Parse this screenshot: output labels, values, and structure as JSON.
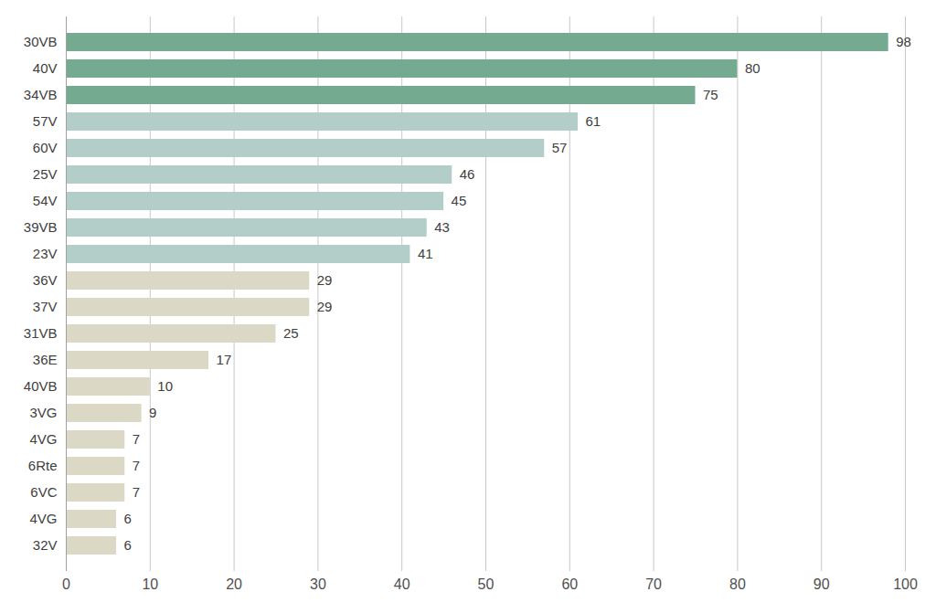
{
  "chart_data": {
    "type": "bar",
    "orientation": "horizontal",
    "categories": [
      "30VB",
      "40V",
      "34VB",
      "57V",
      "60V",
      "25V",
      "54V",
      "39VB",
      "23V",
      "36V",
      "37V",
      "31VB",
      "36E",
      "40VB",
      "3VG",
      "4VG",
      "6Rte",
      "6VC",
      "4VG",
      "32V"
    ],
    "values": [
      98,
      80,
      75,
      61,
      57,
      46,
      45,
      43,
      41,
      29,
      29,
      25,
      17,
      10,
      9,
      7,
      7,
      7,
      6,
      6
    ],
    "colors": [
      "#74aa90",
      "#74aa90",
      "#74aa90",
      "#b3cdc9",
      "#b3cdc9",
      "#b3cdc9",
      "#b3cdc9",
      "#b3cdc9",
      "#b3cdc9",
      "#dbd8c5",
      "#dbd8c5",
      "#dbd8c5",
      "#dbd8c5",
      "#dbd8c5",
      "#dbd8c5",
      "#dbd8c5",
      "#dbd8c5",
      "#dbd8c5",
      "#dbd8c5",
      "#dbd8c5"
    ],
    "xlim": [
      0,
      100
    ],
    "xticks": [
      0,
      10,
      20,
      30,
      40,
      50,
      60,
      70,
      80,
      90,
      100
    ],
    "grid": true,
    "data_labels": true
  }
}
